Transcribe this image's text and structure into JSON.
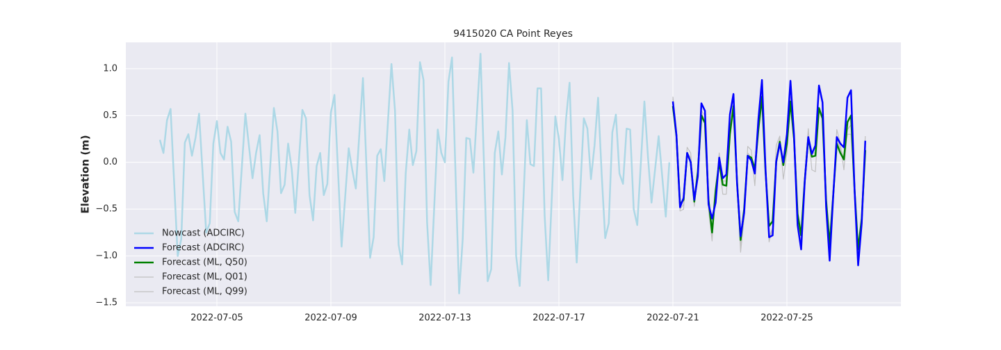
{
  "chart_data": {
    "type": "line",
    "title": "9415020 CA Point Reyes",
    "y_label": "Elevation (m)",
    "xlim": [
      "2022-07-01 19:19",
      "2022-07-29 00:00"
    ],
    "xticks": [
      "2022-07-05",
      "2022-07-09",
      "2022-07-13",
      "2022-07-17",
      "2022-07-21",
      "2022-07-25"
    ],
    "ylim": [
      -1.537,
      1.281
    ],
    "yticks": [
      {
        "value": -1.5,
        "label": "−1.5"
      },
      {
        "value": -1.0,
        "label": "−1.0"
      },
      {
        "value": -0.5,
        "label": "−0.5"
      },
      {
        "value": 0.0,
        "label": "0.0"
      },
      {
        "value": 0.5,
        "label": "0.5"
      },
      {
        "value": 1.0,
        "label": "1.0"
      }
    ],
    "grid": true,
    "legend": "lower left",
    "background": "#eaeaf2",
    "series": [
      {
        "name": "Nowcast (ADCIRC)",
        "color": "#add8e6",
        "width": 2.5,
        "x": [
          "2022-07-03 00:00",
          "2022-07-03 03:00",
          "2022-07-03 06:00",
          "2022-07-03 09:00",
          "2022-07-03 15:00",
          "2022-07-03 18:00",
          "2022-07-03 21:00",
          "2022-07-04 00:00",
          "2022-07-04 03:00",
          "2022-07-04 06:00",
          "2022-07-04 09:00",
          "2022-07-04 15:00",
          "2022-07-04 18:00",
          "2022-07-04 21:00",
          "2022-07-05 00:00",
          "2022-07-05 03:00",
          "2022-07-05 06:00",
          "2022-07-05 09:00",
          "2022-07-05 12:00",
          "2022-07-05 15:00",
          "2022-07-05 18:00",
          "2022-07-06 00:00",
          "2022-07-06 06:00",
          "2022-07-06 09:00",
          "2022-07-06 12:00",
          "2022-07-06 15:00",
          "2022-07-06 18:00",
          "2022-07-07 00:00",
          "2022-07-07 03:00",
          "2022-07-07 06:00",
          "2022-07-07 09:00",
          "2022-07-07 12:00",
          "2022-07-07 15:00",
          "2022-07-07 18:00",
          "2022-07-08 00:00",
          "2022-07-08 03:00",
          "2022-07-08 06:00",
          "2022-07-08 09:00",
          "2022-07-08 12:00",
          "2022-07-08 15:00",
          "2022-07-08 18:00",
          "2022-07-08 21:00",
          "2022-07-09 00:00",
          "2022-07-09 03:00",
          "2022-07-09 09:00",
          "2022-07-09 15:00",
          "2022-07-09 18:00",
          "2022-07-09 21:00",
          "2022-07-10 03:00",
          "2022-07-10 09:00",
          "2022-07-10 12:00",
          "2022-07-10 15:00",
          "2022-07-10 18:00",
          "2022-07-10 21:00",
          "2022-07-11 03:00",
          "2022-07-11 06:00",
          "2022-07-11 09:00",
          "2022-07-11 12:00",
          "2022-07-11 15:00",
          "2022-07-11 18:00",
          "2022-07-11 21:00",
          "2022-07-12 00:00",
          "2022-07-12 03:00",
          "2022-07-12 06:00",
          "2022-07-12 09:00",
          "2022-07-12 12:00",
          "2022-07-12 18:00",
          "2022-07-12 21:00",
          "2022-07-13 00:00",
          "2022-07-13 03:00",
          "2022-07-13 06:00",
          "2022-07-13 12:00",
          "2022-07-13 15:00",
          "2022-07-13 18:00",
          "2022-07-13 21:00",
          "2022-07-14 00:00",
          "2022-07-14 06:00",
          "2022-07-14 12:00",
          "2022-07-14 15:00",
          "2022-07-14 18:00",
          "2022-07-14 21:00",
          "2022-07-15 00:00",
          "2022-07-15 03:00",
          "2022-07-15 06:00",
          "2022-07-15 09:00",
          "2022-07-15 12:00",
          "2022-07-15 15:00",
          "2022-07-15 21:00",
          "2022-07-16 00:00",
          "2022-07-16 03:00",
          "2022-07-16 06:00",
          "2022-07-16 09:00",
          "2022-07-16 12:00",
          "2022-07-16 15:00",
          "2022-07-16 21:00",
          "2022-07-17 00:00",
          "2022-07-17 03:00",
          "2022-07-17 06:00",
          "2022-07-17 09:00",
          "2022-07-17 12:00",
          "2022-07-17 15:00",
          "2022-07-17 21:00",
          "2022-07-18 00:00",
          "2022-07-18 03:00",
          "2022-07-18 06:00",
          "2022-07-18 09:00",
          "2022-07-18 12:00",
          "2022-07-18 15:00",
          "2022-07-18 18:00",
          "2022-07-18 21:00",
          "2022-07-19 00:00",
          "2022-07-19 03:00",
          "2022-07-19 06:00",
          "2022-07-19 09:00",
          "2022-07-19 12:00",
          "2022-07-19 15:00",
          "2022-07-19 18:00",
          "2022-07-20 00:00",
          "2022-07-20 03:00",
          "2022-07-20 06:00",
          "2022-07-20 12:00",
          "2022-07-20 18:00",
          "2022-07-20 21:00"
        ],
        "values": [
          0.24,
          0.1,
          0.45,
          0.57,
          -1.0,
          -0.82,
          0.21,
          0.3,
          0.07,
          0.26,
          0.52,
          -0.75,
          -0.65,
          0.2,
          0.44,
          0.1,
          0.03,
          0.38,
          0.22,
          -0.53,
          -0.63,
          0.52,
          -0.17,
          0.1,
          0.29,
          -0.33,
          -0.63,
          0.58,
          0.33,
          -0.33,
          -0.24,
          0.2,
          -0.07,
          -0.54,
          0.56,
          0.47,
          -0.35,
          -0.62,
          -0.04,
          0.1,
          -0.35,
          -0.23,
          0.53,
          0.72,
          -0.9,
          0.15,
          -0.08,
          -0.28,
          0.9,
          -1.02,
          -0.8,
          0.07,
          0.14,
          -0.2,
          1.05,
          0.55,
          -0.88,
          -1.09,
          -0.12,
          0.35,
          -0.03,
          0.12,
          1.07,
          0.88,
          -0.64,
          -1.31,
          0.35,
          0.1,
          0.0,
          0.86,
          1.12,
          -1.4,
          -0.82,
          0.26,
          0.25,
          -0.11,
          1.16,
          -1.27,
          -1.14,
          0.1,
          0.33,
          -0.13,
          0.27,
          1.06,
          0.55,
          -1.0,
          -1.32,
          0.45,
          -0.02,
          -0.04,
          0.79,
          0.79,
          -0.57,
          -1.26,
          0.49,
          0.25,
          -0.19,
          0.46,
          0.85,
          -0.35,
          -1.07,
          0.47,
          0.36,
          -0.18,
          0.18,
          0.69,
          -0.12,
          -0.81,
          -0.65,
          0.32,
          0.51,
          -0.12,
          -0.23,
          0.36,
          0.35,
          -0.5,
          -0.67,
          0.65,
          0.06,
          -0.43,
          0.28,
          -0.58,
          0.0
        ]
      },
      {
        "name": "Forecast (ADCIRC)",
        "color": "#0000ff",
        "width": 2.5,
        "x": [
          "2022-07-21 00:00",
          "2022-07-21 03:00",
          "2022-07-21 06:00",
          "2022-07-21 09:00",
          "2022-07-21 12:00",
          "2022-07-21 15:00",
          "2022-07-21 18:00",
          "2022-07-21 21:00",
          "2022-07-22 00:00",
          "2022-07-22 03:00",
          "2022-07-22 06:00",
          "2022-07-22 09:00",
          "2022-07-22 12:00",
          "2022-07-22 15:00",
          "2022-07-22 18:00",
          "2022-07-22 21:00",
          "2022-07-23 00:00",
          "2022-07-23 03:00",
          "2022-07-23 06:00",
          "2022-07-23 09:00",
          "2022-07-23 12:00",
          "2022-07-23 15:00",
          "2022-07-23 18:00",
          "2022-07-23 21:00",
          "2022-07-24 00:00",
          "2022-07-24 03:00",
          "2022-07-24 06:00",
          "2022-07-24 09:00",
          "2022-07-24 12:00",
          "2022-07-24 15:00",
          "2022-07-24 18:00",
          "2022-07-24 21:00",
          "2022-07-25 00:00",
          "2022-07-25 03:00",
          "2022-07-25 06:00",
          "2022-07-25 09:00",
          "2022-07-25 12:00",
          "2022-07-25 15:00",
          "2022-07-25 18:00",
          "2022-07-25 21:00",
          "2022-07-26 00:00",
          "2022-07-26 03:00",
          "2022-07-26 06:00",
          "2022-07-26 09:00",
          "2022-07-26 12:00",
          "2022-07-26 15:00",
          "2022-07-26 18:00",
          "2022-07-26 21:00",
          "2022-07-27 00:00",
          "2022-07-27 03:00",
          "2022-07-27 06:00",
          "2022-07-27 09:00",
          "2022-07-27 12:00",
          "2022-07-27 15:00",
          "2022-07-27 18:00"
        ],
        "values": [
          0.65,
          0.29,
          -0.48,
          -0.38,
          0.1,
          0.0,
          -0.4,
          -0.15,
          0.63,
          0.55,
          -0.45,
          -0.6,
          -0.43,
          0.05,
          -0.17,
          -0.13,
          0.51,
          0.73,
          -0.22,
          -0.79,
          -0.54,
          0.07,
          0.02,
          -0.12,
          0.46,
          0.88,
          -0.07,
          -0.8,
          -0.78,
          0.01,
          0.2,
          0.0,
          0.3,
          0.87,
          0.29,
          -0.67,
          -0.93,
          -0.21,
          0.27,
          0.09,
          0.18,
          0.82,
          0.64,
          -0.47,
          -1.05,
          -0.36,
          0.27,
          0.2,
          0.16,
          0.69,
          0.77,
          -0.3,
          -1.1,
          -0.65,
          0.23
        ]
      },
      {
        "name": "Forecast (ML, Q50)",
        "color": "#008000",
        "width": 2.5,
        "x": [
          "2022-07-21 00:00",
          "2022-07-21 03:00",
          "2022-07-21 06:00",
          "2022-07-21 09:00",
          "2022-07-21 12:00",
          "2022-07-21 15:00",
          "2022-07-21 18:00",
          "2022-07-21 21:00",
          "2022-07-22 00:00",
          "2022-07-22 03:00",
          "2022-07-22 06:00",
          "2022-07-22 09:00",
          "2022-07-22 12:00",
          "2022-07-22 15:00",
          "2022-07-22 18:00",
          "2022-07-22 21:00",
          "2022-07-23 00:00",
          "2022-07-23 03:00",
          "2022-07-23 06:00",
          "2022-07-23 09:00",
          "2022-07-23 12:00",
          "2022-07-23 15:00",
          "2022-07-23 18:00",
          "2022-07-23 21:00",
          "2022-07-24 00:00",
          "2022-07-24 03:00",
          "2022-07-24 06:00",
          "2022-07-24 09:00",
          "2022-07-24 12:00",
          "2022-07-24 15:00",
          "2022-07-24 18:00",
          "2022-07-24 21:00",
          "2022-07-25 00:00",
          "2022-07-25 03:00",
          "2022-07-25 06:00",
          "2022-07-25 09:00",
          "2022-07-25 12:00",
          "2022-07-25 15:00",
          "2022-07-25 18:00",
          "2022-07-25 21:00",
          "2022-07-26 00:00",
          "2022-07-26 03:00",
          "2022-07-26 06:00",
          "2022-07-26 09:00",
          "2022-07-26 12:00",
          "2022-07-26 15:00",
          "2022-07-26 18:00",
          "2022-07-26 21:00",
          "2022-07-27 00:00",
          "2022-07-27 03:00",
          "2022-07-27 06:00",
          "2022-07-27 09:00",
          "2022-07-27 12:00",
          "2022-07-27 15:00",
          "2022-07-27 18:00"
        ],
        "values": [
          0.6,
          0.28,
          -0.45,
          -0.4,
          0.1,
          0.0,
          -0.42,
          -0.1,
          0.5,
          0.42,
          -0.4,
          -0.75,
          -0.3,
          0.0,
          -0.24,
          -0.25,
          0.3,
          0.6,
          -0.2,
          -0.83,
          -0.5,
          0.07,
          0.05,
          -0.07,
          0.35,
          0.7,
          -0.1,
          -0.68,
          -0.63,
          0.0,
          0.22,
          -0.03,
          0.2,
          0.65,
          0.25,
          -0.55,
          -0.78,
          -0.2,
          0.26,
          0.06,
          0.07,
          0.58,
          0.47,
          -0.4,
          -0.88,
          -0.35,
          0.2,
          0.1,
          0.03,
          0.43,
          0.5,
          -0.3,
          -0.93,
          -0.6,
          0.13
        ]
      },
      {
        "name": "Forecast (ML, Q01)",
        "color": "#c0c0c0",
        "width": 1.2,
        "x": [
          "2022-07-21 00:00",
          "2022-07-21 03:00",
          "2022-07-21 06:00",
          "2022-07-21 09:00",
          "2022-07-21 12:00",
          "2022-07-21 15:00",
          "2022-07-21 18:00",
          "2022-07-21 21:00",
          "2022-07-22 00:00",
          "2022-07-22 03:00",
          "2022-07-22 06:00",
          "2022-07-22 09:00",
          "2022-07-22 12:00",
          "2022-07-22 15:00",
          "2022-07-22 18:00",
          "2022-07-22 21:00",
          "2022-07-23 00:00",
          "2022-07-23 03:00",
          "2022-07-23 06:00",
          "2022-07-23 09:00",
          "2022-07-23 12:00",
          "2022-07-23 15:00",
          "2022-07-23 18:00",
          "2022-07-23 21:00",
          "2022-07-24 00:00",
          "2022-07-24 03:00",
          "2022-07-24 06:00",
          "2022-07-24 09:00",
          "2022-07-24 12:00",
          "2022-07-24 15:00",
          "2022-07-24 18:00",
          "2022-07-24 21:00",
          "2022-07-25 00:00",
          "2022-07-25 03:00",
          "2022-07-25 06:00",
          "2022-07-25 09:00",
          "2022-07-25 12:00",
          "2022-07-25 15:00",
          "2022-07-25 18:00",
          "2022-07-25 21:00",
          "2022-07-26 00:00",
          "2022-07-26 03:00",
          "2022-07-26 06:00",
          "2022-07-26 09:00",
          "2022-07-26 12:00",
          "2022-07-26 15:00",
          "2022-07-26 18:00",
          "2022-07-26 21:00",
          "2022-07-27 00:00",
          "2022-07-27 03:00",
          "2022-07-27 06:00",
          "2022-07-27 09:00",
          "2022-07-27 12:00",
          "2022-07-27 15:00",
          "2022-07-27 18:00"
        ],
        "values": [
          0.68,
          0.3,
          -0.52,
          -0.5,
          0.16,
          0.1,
          -0.47,
          -0.15,
          0.53,
          0.45,
          -0.5,
          -0.84,
          -0.3,
          0.0,
          -0.34,
          -0.34,
          0.28,
          0.62,
          -0.2,
          -0.96,
          -0.6,
          0.17,
          0.13,
          -0.25,
          0.37,
          0.72,
          -0.05,
          -0.85,
          -0.7,
          0.18,
          0.28,
          -0.18,
          0.1,
          0.64,
          0.2,
          -0.6,
          -0.88,
          -0.15,
          0.36,
          -0.08,
          -0.1,
          0.55,
          0.45,
          -0.45,
          -0.98,
          -0.38,
          0.35,
          0.2,
          -0.08,
          0.35,
          0.4,
          -0.3,
          -0.98,
          -0.6,
          0.2
        ]
      },
      {
        "name": "Forecast (ML, Q99)",
        "color": "#c0c0c0",
        "width": 1.2,
        "x": [
          "2022-07-21 00:00",
          "2022-07-21 03:00",
          "2022-07-21 06:00",
          "2022-07-21 09:00",
          "2022-07-21 12:00",
          "2022-07-21 15:00",
          "2022-07-21 18:00",
          "2022-07-21 21:00",
          "2022-07-22 00:00",
          "2022-07-22 03:00",
          "2022-07-22 06:00",
          "2022-07-22 09:00",
          "2022-07-22 12:00",
          "2022-07-22 15:00",
          "2022-07-22 18:00",
          "2022-07-22 21:00",
          "2022-07-23 00:00",
          "2022-07-23 03:00",
          "2022-07-23 06:00",
          "2022-07-23 09:00",
          "2022-07-23 12:00",
          "2022-07-23 15:00",
          "2022-07-23 18:00",
          "2022-07-23 21:00",
          "2022-07-24 00:00",
          "2022-07-24 03:00",
          "2022-07-24 06:00",
          "2022-07-24 09:00",
          "2022-07-24 12:00",
          "2022-07-24 15:00",
          "2022-07-24 18:00",
          "2022-07-24 21:00",
          "2022-07-25 00:00",
          "2022-07-25 03:00",
          "2022-07-25 06:00",
          "2022-07-25 09:00",
          "2022-07-25 12:00",
          "2022-07-25 15:00",
          "2022-07-25 18:00",
          "2022-07-25 21:00",
          "2022-07-26 00:00",
          "2022-07-26 03:00",
          "2022-07-26 06:00",
          "2022-07-26 09:00",
          "2022-07-26 12:00",
          "2022-07-26 15:00",
          "2022-07-26 18:00",
          "2022-07-26 21:00",
          "2022-07-27 00:00",
          "2022-07-27 03:00",
          "2022-07-27 06:00",
          "2022-07-27 09:00",
          "2022-07-27 12:00",
          "2022-07-27 15:00",
          "2022-07-27 18:00"
        ],
        "values": [
          0.7,
          0.35,
          -0.5,
          -0.45,
          0.1,
          0.05,
          -0.45,
          -0.1,
          0.55,
          0.5,
          -0.45,
          -0.8,
          -0.3,
          0.1,
          -0.2,
          -0.2,
          0.35,
          0.65,
          -0.15,
          -0.9,
          -0.55,
          0.1,
          0.05,
          -0.05,
          0.4,
          0.75,
          -0.05,
          -0.8,
          -0.7,
          0.05,
          0.25,
          0.0,
          0.15,
          0.7,
          0.3,
          -0.6,
          -0.85,
          -0.2,
          0.3,
          0.1,
          0.1,
          0.55,
          0.5,
          -0.45,
          -0.95,
          -0.35,
          0.25,
          0.15,
          0.05,
          0.3,
          0.3,
          -0.3,
          -0.97,
          -0.6,
          0.28
        ]
      }
    ]
  }
}
